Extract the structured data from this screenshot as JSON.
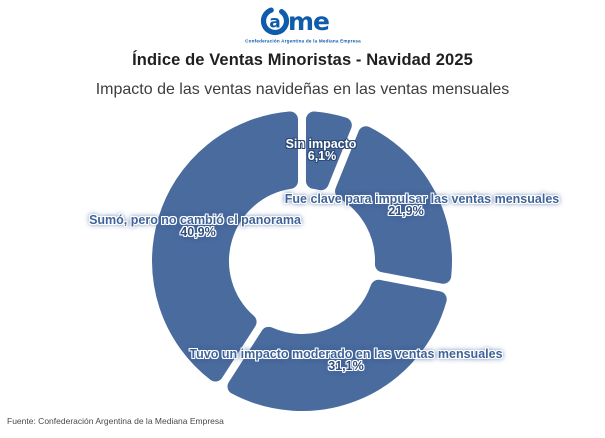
{
  "logo": {
    "text_a": "a",
    "text_me": "me",
    "tagline": "Confederación Argentina de la Mediana Empresa",
    "color": "#0e5cab"
  },
  "header": {
    "title": "Índice de Ventas Minoristas - Navidad 2025",
    "subtitle": "Impacto de las ventas navideñas en las ventas mensuales"
  },
  "footer": {
    "source": "Fuente: Confederación Argentina de la Mediana Empresa"
  },
  "chart_data": {
    "type": "pie",
    "variant": "donut",
    "title": "Índice de Ventas Minoristas - Navidad 2025",
    "subtitle": "Impacto de las ventas navideñas en las ventas mensuales",
    "unit": "%",
    "decimal_separator": ",",
    "start_angle_deg": 0,
    "direction": "clockwise",
    "inner_radius_ratio": 0.49,
    "segment_color": "#4a6b9e",
    "gap_color": "#ffffff",
    "legend_position": "none",
    "segments": [
      {
        "label": "Sin impacto",
        "value": 6.1,
        "display": "6,1%"
      },
      {
        "label": "Fue clave para impulsar las ventas mensuales",
        "value": 21.9,
        "display": "21,9%"
      },
      {
        "label": "Tuvo un impacto moderado en las ventas mensuales",
        "value": 31.1,
        "display": "31,1%"
      },
      {
        "label": "Sumó, pero no cambió el panorama",
        "value": 40.9,
        "display": "40,9%"
      }
    ]
  }
}
